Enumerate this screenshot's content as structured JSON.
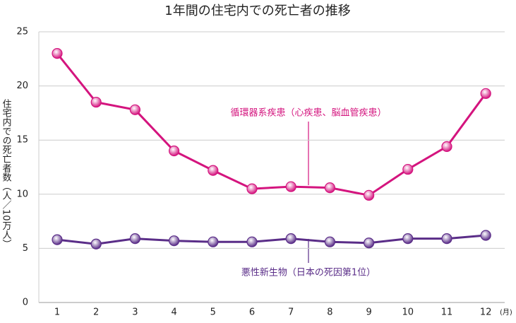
{
  "chart_data": {
    "type": "line",
    "title": "1年間の住宅内での死亡者の推移",
    "y_label": "住宅内での死亡者数（人／10万人）",
    "x_unit": "(月)",
    "categories": [
      "1",
      "2",
      "3",
      "4",
      "5",
      "6",
      "7",
      "8",
      "9",
      "10",
      "11",
      "12"
    ],
    "series": [
      {
        "name": "循環器系疾患（心疾患、脳血管疾患）",
        "color": "#d4147e",
        "values": [
          23.0,
          18.5,
          17.8,
          14.0,
          12.2,
          10.5,
          10.7,
          10.6,
          9.9,
          12.3,
          14.4,
          19.3
        ]
      },
      {
        "name": "悪性新生物（日本の死因第1位）",
        "color": "#5a2d88",
        "values": [
          5.8,
          5.4,
          5.9,
          5.7,
          5.6,
          5.6,
          5.9,
          5.6,
          5.5,
          5.9,
          5.9,
          6.2
        ]
      }
    ],
    "ylim": [
      0,
      25
    ],
    "yticks": [
      0,
      5,
      10,
      15,
      20,
      25
    ],
    "grid": true
  }
}
